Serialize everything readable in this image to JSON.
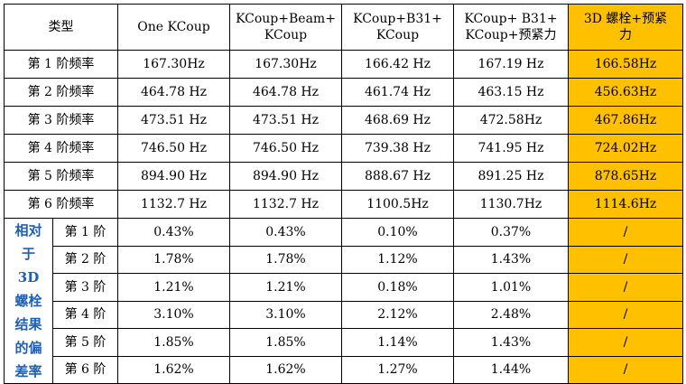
{
  "colors": {
    "highlight": "#ffc000",
    "side_label": "#1f5fb5",
    "border": "#000000"
  },
  "header": {
    "type_label": "类型",
    "col1": [
      "One KCoup"
    ],
    "col2": [
      "KCoup+Beam+",
      "KCoup"
    ],
    "col3": [
      "KCoup+B31+",
      "KCoup"
    ],
    "col4": [
      "KCoup+ B31+",
      "KCoup+预紧力"
    ],
    "col5": [
      "3D 螺栓+预紧",
      "力"
    ]
  },
  "freq_rows": [
    {
      "label": "第 1 阶频率",
      "c1": "167.30Hz",
      "c2": "167.30Hz",
      "c3": "166.42 Hz",
      "c4": "167.19 Hz",
      "c5": "166.58Hz"
    },
    {
      "label": "第 2 阶频率",
      "c1": "464.78 Hz",
      "c2": "464.78 Hz",
      "c3": "461.74 Hz",
      "c4": "463.15 Hz",
      "c5": "456.63Hz"
    },
    {
      "label": "第 3 阶频率",
      "c1": "473.51 Hz",
      "c2": "473.51 Hz",
      "c3": "468.69 Hz",
      "c4": "472.58Hz",
      "c5": "467.86Hz"
    },
    {
      "label": "第 4 阶频率",
      "c1": "746.50 Hz",
      "c2": "746.50 Hz",
      "c3": "739.38 Hz",
      "c4": "741.95 Hz",
      "c5": "724.02Hz"
    },
    {
      "label": "第 5 阶频率",
      "c1": "894.90 Hz",
      "c2": "894.90 Hz",
      "c3": "888.67 Hz",
      "c4": "891.25 Hz",
      "c5": "878.65Hz"
    },
    {
      "label": "第 6 阶频率",
      "c1": "1132.7 Hz",
      "c2": "1132.7 Hz",
      "c3": "1100.5Hz",
      "c4": "1130.7Hz",
      "c5": "1114.6Hz"
    }
  ],
  "deviation": {
    "side_label": [
      "相对",
      "于",
      "3D",
      "螺栓",
      "结果",
      "的偏",
      "差率"
    ],
    "rows": [
      {
        "label": "第 1 阶",
        "c1": "0.43%",
        "c2": "0.43%",
        "c3": "0.10%",
        "c4": "0.37%",
        "c5": "/"
      },
      {
        "label": "第 2 阶",
        "c1": "1.78%",
        "c2": "1.78%",
        "c3": "1.12%",
        "c4": "1.43%",
        "c5": "/"
      },
      {
        "label": "第 3 阶",
        "c1": "1.21%",
        "c2": "1.21%",
        "c3": "0.18%",
        "c4": "1.01%",
        "c5": "/"
      },
      {
        "label": "第 4 阶",
        "c1": "3.10%",
        "c2": "3.10%",
        "c3": "2.12%",
        "c4": "2.48%",
        "c5": "/"
      },
      {
        "label": "第 5 阶",
        "c1": "1.85%",
        "c2": "1.85%",
        "c3": "1.14%",
        "c4": "1.43%",
        "c5": "/"
      },
      {
        "label": "第 6 阶",
        "c1": "1.62%",
        "c2": "1.62%",
        "c3": "1.27%",
        "c4": "1.44%",
        "c5": "/"
      }
    ]
  }
}
